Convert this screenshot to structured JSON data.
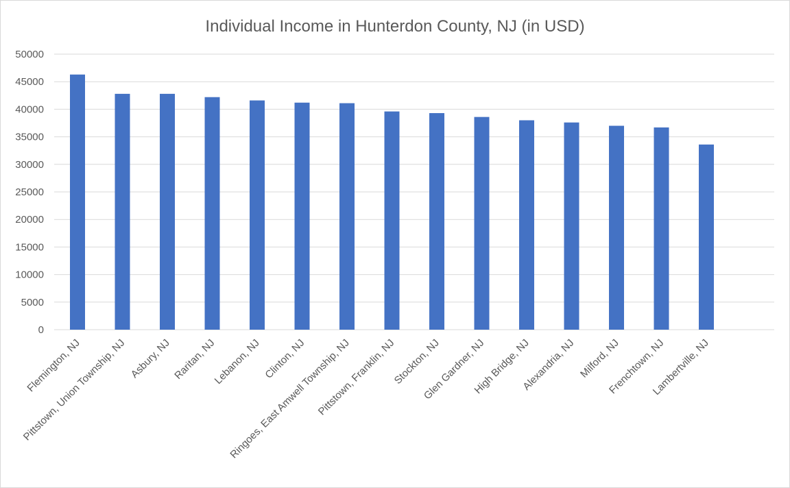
{
  "chart_data": {
    "type": "bar",
    "title": "Individual Income in Hunterdon County, NJ (in USD)",
    "xlabel": "",
    "ylabel": "",
    "ylim": [
      0,
      50000
    ],
    "yticks": [
      "0",
      "5000",
      "10000",
      "15000",
      "20000",
      "25000",
      "30000",
      "35000",
      "40000",
      "45000",
      "50000"
    ],
    "grid": true,
    "legend": "none",
    "bar_color": "#4472C4",
    "categories": [
      "Flemington, NJ",
      "Pittstown, Union Township, NJ",
      "Asbury, NJ",
      "Raritan, NJ",
      "Lebanon, NJ",
      "Clinton, NJ",
      "Ringoes, East Amwell Township, NJ",
      "Pittstown, Franklin, NJ",
      "Stockton, NJ",
      "Glen Gardner, NJ",
      "High Bridge, NJ",
      "Alexandria, NJ",
      "Milford, NJ",
      "Frenchtown, NJ",
      "Lambertville, NJ"
    ],
    "values": [
      46300,
      42800,
      42800,
      42200,
      41600,
      41200,
      41100,
      39600,
      39300,
      38600,
      38000,
      37600,
      37000,
      36700,
      33600
    ]
  }
}
